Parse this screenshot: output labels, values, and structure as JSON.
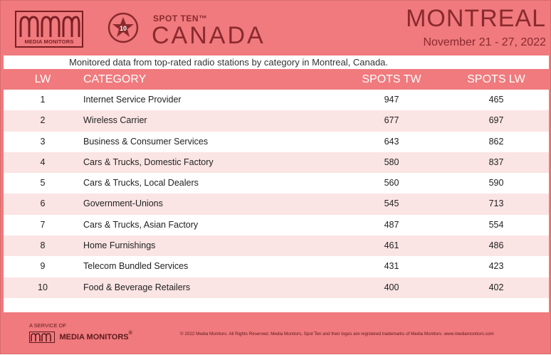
{
  "header": {
    "logo_text": "MEDIA MONITORS",
    "badge_number": "10",
    "spot_ten": "SPOT TEN™",
    "country": "CANADA",
    "city": "MONTREAL",
    "dates": "November 21 - 27, 2022"
  },
  "subtitle": "Monitored data from top-rated radio stations by category in Montreal, Canada.",
  "columns": {
    "lw": "LW",
    "category": "CATEGORY",
    "spots_tw": "SPOTS TW",
    "spots_lw": "SPOTS LW"
  },
  "rows": [
    {
      "lw": "1",
      "category": "Internet Service Provider",
      "tw": "947",
      "lwv": "465"
    },
    {
      "lw": "2",
      "category": "Wireless Carrier",
      "tw": "677",
      "lwv": "697"
    },
    {
      "lw": "3",
      "category": "Business & Consumer Services",
      "tw": "643",
      "lwv": "862"
    },
    {
      "lw": "4",
      "category": "Cars & Trucks, Domestic Factory",
      "tw": "580",
      "lwv": "837"
    },
    {
      "lw": "5",
      "category": "Cars & Trucks, Local Dealers",
      "tw": "560",
      "lwv": "590"
    },
    {
      "lw": "6",
      "category": "Government-Unions",
      "tw": "545",
      "lwv": "713"
    },
    {
      "lw": "7",
      "category": "Cars & Trucks, Asian Factory",
      "tw": "487",
      "lwv": "554"
    },
    {
      "lw": "8",
      "category": "Home Furnishings",
      "tw": "461",
      "lwv": "486"
    },
    {
      "lw": "9",
      "category": "Telecom Bundled Services",
      "tw": "431",
      "lwv": "423"
    },
    {
      "lw": "10",
      "category": "Food & Beverage Retailers",
      "tw": "400",
      "lwv": "402"
    }
  ],
  "footer": {
    "service": "A SERVICE OF",
    "logo_text": "MEDIA MONITORS",
    "logo_mark": "®",
    "copyright": "© 2022 Media Monitors. All Rights Reserved. Media Monitors, Spot Ten and their logos are registered trademarks of Media Monitors. www.mediamonitors.com"
  },
  "colors": {
    "background": "#f07a7d",
    "accent_dark": "#8a2a2e",
    "row_alt": "#fbe4e4"
  },
  "icons": {
    "logo": "media-monitors-wave-icon",
    "badge": "star-badge-icon"
  }
}
